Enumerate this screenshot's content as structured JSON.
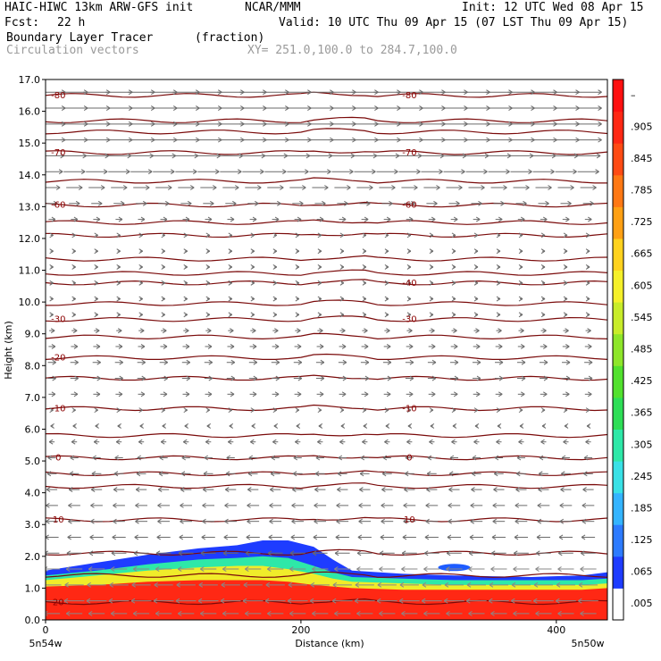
{
  "header": {
    "model": "HAIC-HIWC 13km ARW-GFS init",
    "center": "NCAR/MMM",
    "init": "Init: 12 UTC Wed 08 Apr 15",
    "fcst_label": "Fcst:",
    "fcst_value": "22 h",
    "valid": "Valid: 10 UTC Thu 09 Apr 15 (07 LST Thu 09 Apr 15)",
    "field": "Boundary Layer Tracer",
    "units": "(fraction)",
    "vectors": "Circulation vectors",
    "xy": "XY= 251.0,100.0 to 284.7,100.0"
  },
  "chart_data": {
    "type": "heatmap",
    "title": "Boundary Layer Tracer (fraction)",
    "xlabel": "Distance (km)",
    "ylabel": "Height (km)",
    "xlim": [
      0,
      440
    ],
    "ylim": [
      0,
      17
    ],
    "x_ticks": [
      0,
      200,
      400
    ],
    "y_ticks": [
      0.0,
      1.0,
      2.0,
      3.0,
      4.0,
      5.0,
      6.0,
      7.0,
      8.0,
      9.0,
      10.0,
      11.0,
      12.0,
      13.0,
      14.0,
      15.0,
      16.0,
      17.0
    ],
    "x_endpoints": [
      "5n54w",
      "5n50w"
    ],
    "colorbar": {
      "labels": [
        ".005",
        ".065",
        ".125",
        ".185",
        ".245",
        ".305",
        ".365",
        ".425",
        ".485",
        ".545",
        ".605",
        ".665",
        ".725",
        ".785",
        ".845",
        ".905",
        "–"
      ],
      "colors": [
        "#ffffff",
        "#1e3cff",
        "#2d7bff",
        "#34b4ff",
        "#39e1e6",
        "#2ee8a8",
        "#2ede56",
        "#52e12e",
        "#8ee62a",
        "#c8ec2a",
        "#f5f02a",
        "#ffd21e",
        "#ffa014",
        "#ff7814",
        "#ff4b14",
        "#ff2814",
        "#ff1010"
      ]
    },
    "tracer_layer": {
      "x": [
        0,
        40,
        80,
        120,
        150,
        170,
        190,
        210,
        225,
        240,
        280,
        320,
        380,
        420,
        440
      ],
      "top_blue_km": [
        1.55,
        1.8,
        2.05,
        2.25,
        2.35,
        2.5,
        2.5,
        2.3,
        1.9,
        1.55,
        1.45,
        1.4,
        1.35,
        1.4,
        1.5
      ],
      "top_green_km": [
        1.4,
        1.55,
        1.75,
        1.9,
        1.95,
        2.0,
        1.95,
        1.7,
        1.5,
        1.35,
        1.3,
        1.25,
        1.25,
        1.25,
        1.3
      ],
      "top_yellow_km": [
        1.25,
        1.4,
        1.55,
        1.65,
        1.7,
        1.7,
        1.6,
        1.45,
        1.3,
        1.2,
        1.15,
        1.1,
        1.1,
        1.1,
        1.15
      ],
      "top_red_km": [
        1.05,
        1.1,
        1.2,
        1.25,
        1.25,
        1.25,
        1.2,
        1.1,
        1.05,
        1.0,
        0.95,
        0.95,
        0.95,
        0.95,
        1.0
      ],
      "blob": {
        "x": 320,
        "y_km": 1.65
      }
    },
    "isotherms": [
      {
        "label": "-80",
        "y_km": 16.5
      },
      {
        "label": "-70",
        "y_km": 14.7
      },
      {
        "label": "-60",
        "y_km": 13.05
      },
      {
        "label": "-40",
        "y_km": 10.6
      },
      {
        "label": "-30",
        "y_km": 9.45
      },
      {
        "label": "-20",
        "y_km": 8.25
      },
      {
        "label": "-10",
        "y_km": 6.65
      },
      {
        "label": "0",
        "y_km": 5.1
      },
      {
        "label": "10",
        "y_km": 3.15
      },
      {
        "label": "20",
        "y_km": 0.55
      }
    ],
    "isotherm_labels_left": [
      "-80",
      "-70",
      "-60",
      "-30",
      "-20",
      "-10",
      "0",
      "10",
      "20"
    ],
    "isotherm_labels_right": [
      "-80",
      "-70",
      "-60",
      "-40",
      "-30",
      "-10",
      "0",
      "10"
    ],
    "extra_levels_km": [
      15.7,
      15.35,
      13.8,
      12.5,
      12.1,
      11.35,
      10.9,
      9.95,
      8.9,
      7.6,
      5.8,
      4.6,
      4.2,
      2.1,
      1.4
    ],
    "wind_levels": [
      {
        "y_km": 16.6,
        "u": 1.0
      },
      {
        "y_km": 16.1,
        "u": 1.0
      },
      {
        "y_km": 15.6,
        "u": 1.0
      },
      {
        "y_km": 15.1,
        "u": 1.0
      },
      {
        "y_km": 14.6,
        "u": 0.9
      },
      {
        "y_km": 14.1,
        "u": 0.8
      },
      {
        "y_km": 13.6,
        "u": 0.6
      },
      {
        "y_km": 13.1,
        "u": 0.4
      },
      {
        "y_km": 12.6,
        "u": 0.25
      },
      {
        "y_km": 12.1,
        "u": 0.1
      },
      {
        "y_km": 11.6,
        "u": 0.05
      },
      {
        "y_km": 11.1,
        "u": 0.0
      },
      {
        "y_km": 10.6,
        "u": 0.0
      },
      {
        "y_km": 10.1,
        "u": 0.0
      },
      {
        "y_km": 9.6,
        "u": 0.1
      },
      {
        "y_km": 9.1,
        "u": 0.2
      },
      {
        "y_km": 8.6,
        "u": 0.25
      },
      {
        "y_km": 8.1,
        "u": 0.3
      },
      {
        "y_km": 7.6,
        "u": 0.3
      },
      {
        "y_km": 7.1,
        "u": 0.25
      },
      {
        "y_km": 6.6,
        "u": 0.1
      },
      {
        "y_km": 6.1,
        "u": -0.1
      },
      {
        "y_km": 5.6,
        "u": -0.2
      },
      {
        "y_km": 5.1,
        "u": -0.3
      },
      {
        "y_km": 4.6,
        "u": -0.35
      },
      {
        "y_km": 4.1,
        "u": -0.4
      },
      {
        "y_km": 3.6,
        "u": -0.45
      },
      {
        "y_km": 3.1,
        "u": -0.45
      },
      {
        "y_km": 2.6,
        "u": -0.5
      },
      {
        "y_km": 2.1,
        "u": -0.55
      },
      {
        "y_km": 1.6,
        "u": -0.6
      },
      {
        "y_km": 1.1,
        "u": -0.7
      },
      {
        "y_km": 0.6,
        "u": -0.75
      },
      {
        "y_km": 0.2,
        "u": -0.6
      }
    ]
  }
}
